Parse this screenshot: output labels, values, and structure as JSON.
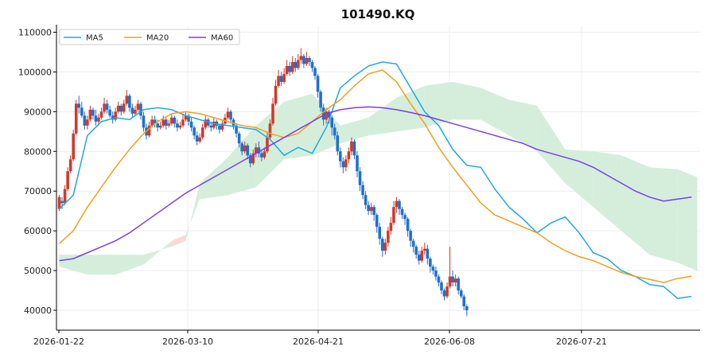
{
  "chart_data": {
    "type": "line",
    "title": "101490.KQ",
    "xlabel": "",
    "ylabel": "",
    "x_tick_labels": [
      "2026-01-22",
      "2026-03-10",
      "2026-04-21",
      "2026-06-08",
      "2026-07-21"
    ],
    "y_ticks": [
      40000,
      50000,
      60000,
      70000,
      80000,
      90000,
      100000,
      110000
    ],
    "y_tick_labels": [
      "40000",
      "50000",
      "60000",
      "70000",
      "80000",
      "90000",
      "100000",
      "110000"
    ],
    "ylim": [
      35000,
      111500
    ],
    "xlim": [
      -1,
      228
    ],
    "grid": true,
    "legend_position": "top-left",
    "colors": {
      "ma5": "#1fa8e0",
      "ma20": "#f0a020",
      "ma60": "#7b3fe4",
      "up_candle": "#d03a2a",
      "down_candle": "#1f6fd0",
      "cloud_bull": "#d4eedb",
      "cloud_bear": "#fbd8d8",
      "grid": "#ececec"
    },
    "series": [
      {
        "name": "MA5",
        "x": [
          0,
          5,
          10,
          15,
          20,
          25,
          30,
          35,
          40,
          45,
          50,
          55,
          60,
          65,
          70,
          75,
          80,
          85,
          90,
          95,
          100,
          105,
          110,
          115,
          120,
          125,
          130,
          135,
          140,
          145,
          150,
          155,
          160,
          165,
          170,
          175,
          180,
          185,
          190,
          195,
          200,
          205,
          210,
          215,
          220,
          225
        ],
        "values": [
          65500,
          69000,
          84000,
          87500,
          88500,
          88000,
          90500,
          91000,
          90500,
          89000,
          88000,
          87000,
          86500,
          86000,
          85500,
          83000,
          79000,
          81000,
          79500,
          86000,
          96000,
          99000,
          101500,
          102500,
          102000,
          96000,
          90000,
          86500,
          80500,
          76500,
          76000,
          70500,
          66000,
          63000,
          59500,
          62000,
          63500,
          59500,
          54500,
          53000,
          50000,
          48500,
          46500,
          46000,
          43000,
          43500
        ]
      },
      {
        "name": "MA20",
        "x": [
          0,
          5,
          10,
          15,
          20,
          25,
          30,
          35,
          40,
          45,
          50,
          55,
          60,
          65,
          70,
          75,
          80,
          85,
          90,
          95,
          100,
          105,
          110,
          115,
          120,
          125,
          130,
          135,
          140,
          145,
          150,
          155,
          160,
          165,
          170,
          175,
          180,
          185,
          190,
          195,
          200,
          205,
          210,
          215,
          220,
          225
        ],
        "values": [
          56800,
          60000,
          66000,
          71000,
          76000,
          80500,
          84500,
          87500,
          89500,
          90000,
          89500,
          88500,
          87500,
          86500,
          86000,
          84500,
          83500,
          84500,
          87500,
          90500,
          93000,
          96500,
          99500,
          100500,
          97500,
          92000,
          87000,
          81000,
          76000,
          71500,
          67000,
          64000,
          62500,
          61000,
          59500,
          57000,
          55000,
          53500,
          52500,
          51000,
          49500,
          48500,
          47800,
          47000,
          48000,
          48600
        ]
      },
      {
        "name": "MA60",
        "x": [
          0,
          5,
          10,
          15,
          20,
          25,
          30,
          35,
          40,
          45,
          50,
          55,
          60,
          65,
          70,
          75,
          80,
          85,
          90,
          95,
          100,
          105,
          110,
          115,
          120,
          125,
          130,
          135,
          140,
          145,
          150,
          155,
          160,
          165,
          170,
          175,
          180,
          185,
          190,
          195,
          200,
          205,
          210,
          215,
          220,
          225
        ],
        "values": [
          52500,
          53000,
          54500,
          56000,
          57500,
          59500,
          62000,
          64500,
          67000,
          69500,
          71500,
          73500,
          75500,
          77500,
          79500,
          81500,
          83500,
          85500,
          87500,
          89500,
          90500,
          91000,
          91200,
          91000,
          90500,
          89800,
          89000,
          88000,
          87000,
          86000,
          85000,
          84000,
          83000,
          82000,
          80500,
          79500,
          78500,
          77500,
          76000,
          74000,
          72000,
          70000,
          68500,
          67500,
          68000,
          68500
        ]
      }
    ],
    "candles": [
      [
        0,
        65500,
        68500,
        69000,
        65000
      ],
      [
        1,
        67500,
        67000,
        68500,
        65500
      ],
      [
        2,
        67000,
        70500,
        71500,
        66500
      ],
      [
        3,
        70500,
        75000,
        76000,
        70000
      ],
      [
        4,
        75000,
        78000,
        79000,
        74500
      ],
      [
        5,
        78000,
        84500,
        85500,
        77500
      ],
      [
        6,
        84500,
        92000,
        93000,
        84000
      ],
      [
        7,
        92000,
        91000,
        94000,
        89500
      ],
      [
        8,
        91000,
        89000,
        92500,
        88500
      ],
      [
        9,
        89000,
        86500,
        90000,
        85500
      ],
      [
        10,
        86500,
        88000,
        89000,
        85500
      ],
      [
        11,
        88000,
        90500,
        91500,
        87500
      ],
      [
        12,
        90500,
        89000,
        91000,
        88000
      ],
      [
        13,
        89000,
        87500,
        90500,
        86500
      ],
      [
        14,
        87500,
        88500,
        89500,
        86500
      ],
      [
        15,
        88500,
        90000,
        91000,
        88000
      ],
      [
        16,
        90000,
        92000,
        93500,
        89500
      ],
      [
        17,
        92000,
        90500,
        93000,
        89500
      ],
      [
        18,
        90500,
        89000,
        91500,
        88500
      ],
      [
        19,
        89000,
        88000,
        90000,
        87000
      ],
      [
        20,
        88000,
        90000,
        91000,
        87500
      ],
      [
        21,
        90000,
        91500,
        92500,
        89500
      ],
      [
        22,
        91500,
        90000,
        92000,
        89000
      ],
      [
        23,
        90000,
        92000,
        93000,
        89500
      ],
      [
        24,
        92000,
        94000,
        95500,
        91500
      ],
      [
        25,
        94000,
        91000,
        94500,
        90000
      ],
      [
        26,
        91000,
        89500,
        92000,
        88500
      ],
      [
        27,
        89500,
        90500,
        91500,
        89000
      ],
      [
        28,
        90500,
        92000,
        93000,
        90000
      ],
      [
        29,
        92000,
        89000,
        92500,
        88000
      ],
      [
        30,
        89000,
        86000,
        90000,
        85000
      ],
      [
        31,
        86000,
        84000,
        87000,
        83000
      ],
      [
        32,
        84000,
        86500,
        87500,
        83500
      ],
      [
        33,
        86500,
        88000,
        89000,
        86000
      ],
      [
        34,
        88000,
        87000,
        89000,
        86000
      ],
      [
        35,
        87000,
        86000,
        88000,
        85000
      ],
      [
        36,
        86000,
        86500,
        87500,
        85500
      ],
      [
        37,
        86500,
        88000,
        89000,
        86000
      ],
      [
        38,
        88000,
        86500,
        88500,
        85500
      ],
      [
        39,
        86500,
        87000,
        88000,
        86000
      ],
      [
        40,
        87000,
        88500,
        89500,
        86500
      ],
      [
        41,
        88500,
        87000,
        89000,
        86000
      ],
      [
        42,
        87000,
        86000,
        88000,
        85000
      ],
      [
        43,
        86000,
        86500,
        87500,
        85500
      ],
      [
        44,
        86500,
        88000,
        89500,
        86000
      ],
      [
        45,
        88000,
        89000,
        90000,
        87500
      ],
      [
        46,
        89000,
        87500,
        89500,
        86500
      ],
      [
        47,
        87500,
        86000,
        88500,
        85000
      ],
      [
        48,
        86000,
        84000,
        86500,
        83000
      ],
      [
        49,
        84000,
        82500,
        85000,
        81500
      ],
      [
        50,
        82500,
        83500,
        84500,
        82000
      ],
      [
        51,
        83500,
        86000,
        87000,
        83000
      ],
      [
        52,
        86000,
        88000,
        89000,
        85500
      ],
      [
        53,
        88000,
        86500,
        88500,
        86000
      ],
      [
        54,
        86500,
        86000,
        87500,
        85000
      ],
      [
        55,
        86000,
        87500,
        88500,
        85500
      ],
      [
        56,
        87500,
        86500,
        88000,
        85500
      ],
      [
        57,
        86500,
        85500,
        87000,
        84500
      ],
      [
        58,
        85500,
        87000,
        88000,
        85000
      ],
      [
        59,
        87000,
        88500,
        89500,
        86500
      ],
      [
        60,
        88500,
        90000,
        91000,
        88000
      ],
      [
        61,
        90000,
        88000,
        90500,
        87000
      ],
      [
        62,
        88000,
        86500,
        88500,
        85500
      ],
      [
        63,
        86500,
        84500,
        87000,
        83500
      ],
      [
        64,
        84500,
        82000,
        85000,
        81000
      ],
      [
        65,
        82000,
        80000,
        82500,
        79000
      ],
      [
        66,
        80000,
        81500,
        82500,
        79500
      ],
      [
        67,
        81500,
        79000,
        82000,
        78000
      ],
      [
        68,
        79000,
        77000,
        79500,
        76000
      ],
      [
        69,
        77000,
        79500,
        80500,
        76500
      ],
      [
        70,
        79500,
        81000,
        82000,
        78500
      ],
      [
        71,
        81000,
        79500,
        82500,
        78500
      ],
      [
        72,
        79500,
        78500,
        80000,
        77500
      ],
      [
        73,
        78500,
        80000,
        81000,
        78000
      ],
      [
        74,
        80000,
        83500,
        85000,
        79500
      ],
      [
        75,
        83500,
        87000,
        88000,
        83000
      ],
      [
        76,
        87000,
        92000,
        93500,
        86500
      ],
      [
        77,
        92000,
        96500,
        98000,
        91500
      ],
      [
        78,
        96500,
        99000,
        100500,
        96000
      ],
      [
        79,
        99000,
        97500,
        100000,
        96500
      ],
      [
        80,
        97500,
        99500,
        101000,
        97000
      ],
      [
        81,
        99500,
        101500,
        103000,
        99000
      ],
      [
        82,
        101500,
        100000,
        102500,
        99000
      ],
      [
        83,
        100000,
        102500,
        104000,
        99500
      ],
      [
        84,
        102500,
        101000,
        103500,
        100000
      ],
      [
        85,
        101000,
        103000,
        104500,
        100500
      ],
      [
        86,
        103000,
        104000,
        106000,
        102000
      ],
      [
        87,
        104000,
        102000,
        104500,
        101000
      ],
      [
        88,
        102000,
        103500,
        105000,
        101500
      ],
      [
        89,
        103500,
        102500,
        104000,
        101500
      ],
      [
        90,
        102500,
        101000,
        103000,
        100000
      ],
      [
        91,
        101000,
        99000,
        101500,
        98000
      ],
      [
        92,
        99000,
        95000,
        99500,
        93500
      ],
      [
        93,
        95000,
        91000,
        95500,
        90000
      ],
      [
        94,
        91000,
        88000,
        92000,
        86500
      ],
      [
        95,
        88000,
        90000,
        91000,
        87000
      ],
      [
        96,
        90000,
        88500,
        90500,
        87000
      ],
      [
        97,
        88500,
        86000,
        89000,
        84000
      ],
      [
        98,
        86000,
        84000,
        87000,
        83000
      ],
      [
        99,
        84000,
        80000,
        85000,
        79000
      ],
      [
        100,
        80000,
        77500,
        81000,
        76000
      ],
      [
        101,
        77500,
        76000,
        78500,
        74500
      ],
      [
        102,
        76000,
        78000,
        79000,
        75000
      ],
      [
        103,
        78000,
        80000,
        81000,
        77000
      ],
      [
        104,
        80000,
        82500,
        83500,
        79000
      ],
      [
        105,
        82500,
        79000,
        83000,
        78000
      ],
      [
        106,
        79000,
        75000,
        80000,
        73500
      ],
      [
        107,
        75000,
        71500,
        76000,
        70000
      ],
      [
        108,
        71500,
        69000,
        72500,
        68000
      ],
      [
        109,
        69000,
        66500,
        70000,
        65500
      ],
      [
        110,
        66500,
        65000,
        67500,
        64000
      ],
      [
        111,
        65000,
        66000,
        67000,
        64000
      ],
      [
        112,
        66000,
        64000,
        66500,
        62500
      ],
      [
        113,
        64000,
        61000,
        64500,
        59500
      ],
      [
        114,
        61000,
        58000,
        62000,
        56500
      ],
      [
        115,
        58000,
        55000,
        58500,
        53500
      ],
      [
        116,
        55000,
        57000,
        58000,
        54000
      ],
      [
        117,
        57000,
        60000,
        61000,
        56000
      ],
      [
        118,
        60000,
        62000,
        63500,
        59000
      ],
      [
        119,
        62000,
        66000,
        67500,
        61500
      ],
      [
        120,
        66000,
        67500,
        68500,
        64500
      ],
      [
        121,
        67500,
        65500,
        68000,
        64000
      ],
      [
        122,
        65500,
        64000,
        66000,
        63000
      ],
      [
        123,
        64000,
        63000,
        64500,
        61500
      ],
      [
        124,
        63000,
        60000,
        63500,
        58500
      ],
      [
        125,
        60000,
        57500,
        60500,
        56000
      ],
      [
        126,
        57500,
        56000,
        58000,
        54500
      ],
      [
        127,
        56000,
        54000,
        56500,
        53000
      ],
      [
        128,
        54000,
        52500,
        55000,
        51500
      ],
      [
        129,
        52500,
        55000,
        56000,
        52000
      ],
      [
        130,
        55000,
        55500,
        57000,
        54000
      ],
      [
        131,
        55500,
        53000,
        56500,
        51500
      ],
      [
        132,
        53000,
        51000,
        53500,
        49500
      ],
      [
        133,
        51000,
        50000,
        51500,
        49000
      ],
      [
        134,
        50000,
        48500,
        51000,
        47500
      ],
      [
        135,
        48500,
        47000,
        49000,
        46000
      ],
      [
        136,
        47000,
        45000,
        47500,
        44000
      ],
      [
        137,
        45000,
        43500,
        45500,
        42500
      ],
      [
        138,
        43500,
        46000,
        47000,
        43000
      ],
      [
        139,
        46000,
        48500,
        56000,
        45500
      ],
      [
        140,
        48500,
        47000,
        50000,
        46000
      ],
      [
        141,
        47000,
        48000,
        49000,
        46000
      ],
      [
        142,
        48000,
        45000,
        48500,
        44000
      ],
      [
        143,
        45000,
        43500,
        45500,
        43000
      ],
      [
        144,
        43500,
        41000,
        44000,
        40000
      ],
      [
        145,
        41000,
        40000,
        41500,
        38500
      ]
    ],
    "ichimoku_cloud": {
      "x": [
        0,
        10,
        20,
        30,
        40,
        45,
        50,
        60,
        70,
        80,
        90,
        100,
        110,
        120,
        130,
        140,
        150,
        160,
        170,
        180,
        190,
        200,
        210,
        220,
        227
      ],
      "span_a": [
        54000,
        54000,
        54000,
        54000,
        56000,
        57500,
        72000,
        78500,
        86500,
        92500,
        94500,
        86500,
        88500,
        93500,
        96500,
        97500,
        96000,
        93000,
        91500,
        80500,
        80000,
        79000,
        76000,
        75500,
        73500
      ],
      "span_b": [
        51000,
        49000,
        49000,
        51500,
        57500,
        59000,
        68000,
        69000,
        71000,
        78000,
        79000,
        82000,
        84000,
        85000,
        86000,
        88000,
        88000,
        84000,
        80000,
        72000,
        66000,
        60000,
        54000,
        52000,
        50000
      ]
    },
    "ichimoku_xlim": [
      -1,
      227
    ],
    "legend": [
      "MA5",
      "MA20",
      "MA60"
    ]
  }
}
